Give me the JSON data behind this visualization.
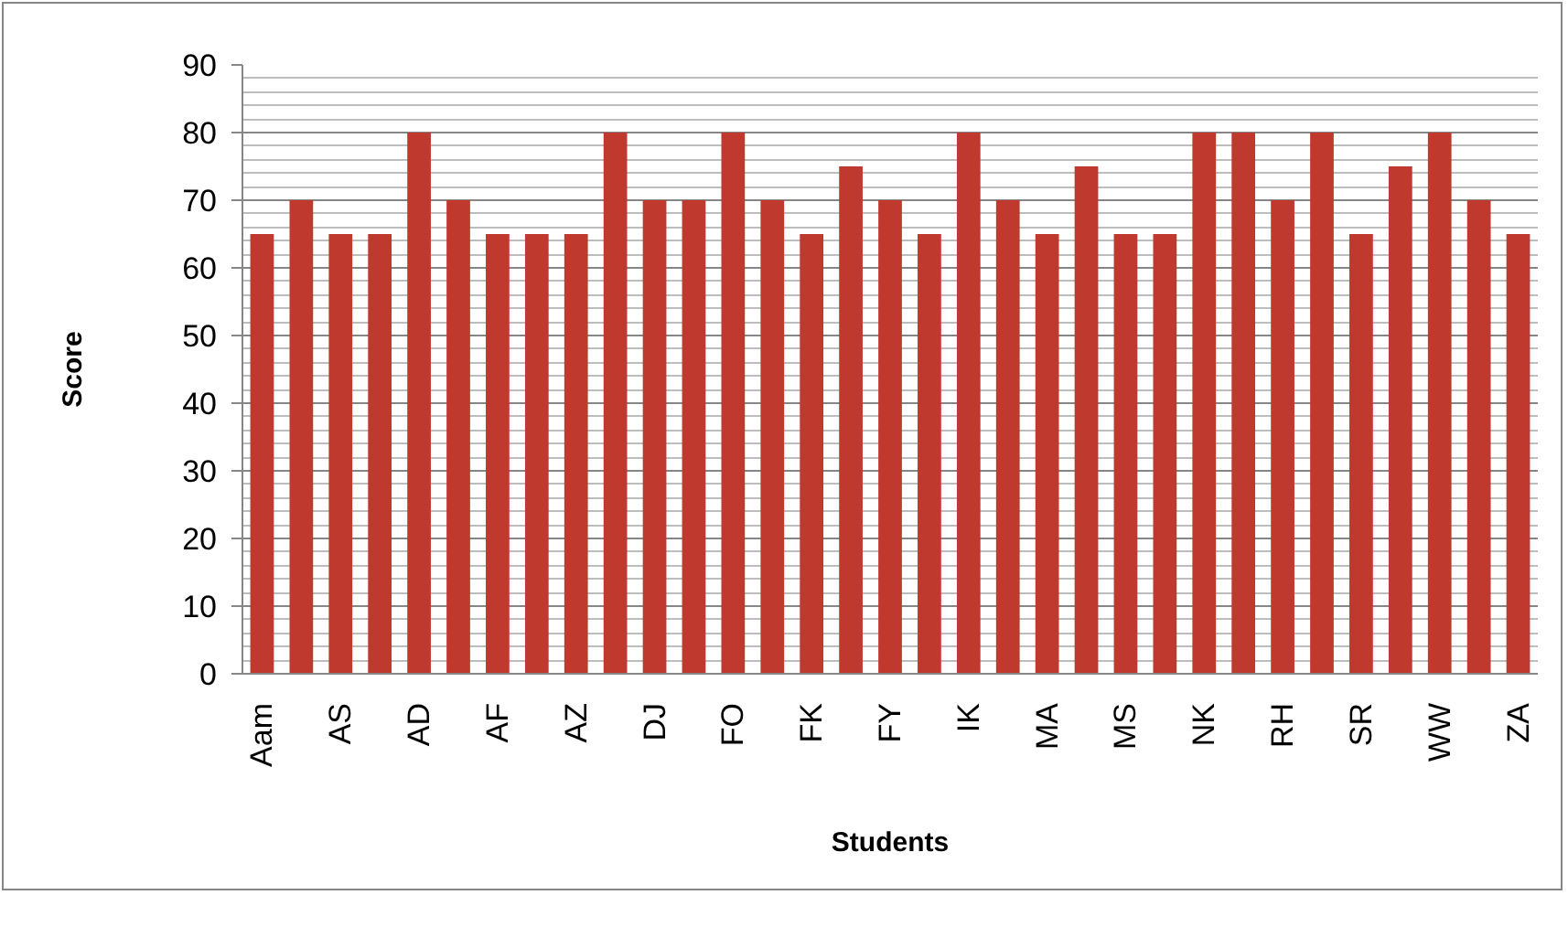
{
  "chart_data": {
    "type": "bar",
    "xlabel": "Students",
    "ylabel": "Score",
    "categories": [
      "Aam",
      null,
      "AS",
      null,
      "AD",
      null,
      "AF",
      null,
      "AZ",
      null,
      "DJ",
      null,
      "FO",
      null,
      "FK",
      null,
      "FY",
      null,
      "IK",
      null,
      "MA",
      null,
      "MS",
      null,
      "NK",
      null,
      "RH",
      null,
      "SR",
      null,
      "WW",
      null,
      "ZA"
    ],
    "values": [
      65,
      70,
      65,
      65,
      80,
      70,
      65,
      65,
      65,
      80,
      70,
      70,
      80,
      70,
      65,
      75,
      70,
      65,
      80,
      70,
      65,
      75,
      65,
      65,
      80,
      80,
      70,
      80,
      65,
      75,
      80,
      70,
      65
    ],
    "color": "#c0392f",
    "ylim": [
      0,
      90
    ],
    "yticks": [
      0,
      10,
      20,
      30,
      40,
      50,
      60,
      70,
      80,
      90
    ],
    "grid": "y"
  }
}
